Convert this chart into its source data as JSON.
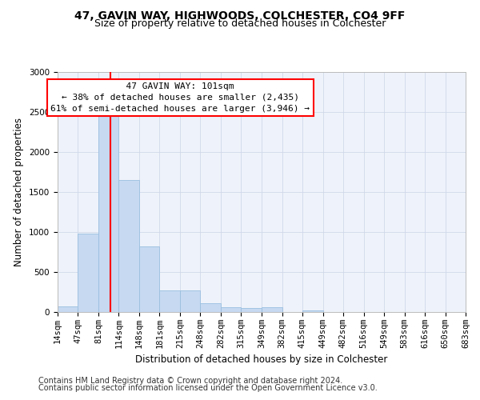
{
  "title1": "47, GAVIN WAY, HIGHWOODS, COLCHESTER, CO4 9FF",
  "title2": "Size of property relative to detached houses in Colchester",
  "xlabel": "Distribution of detached houses by size in Colchester",
  "ylabel": "Number of detached properties",
  "footnote1": "Contains HM Land Registry data © Crown copyright and database right 2024.",
  "footnote2": "Contains public sector information licensed under the Open Government Licence v3.0.",
  "annotation_line1": "  47 GAVIN WAY: 101sqm  ",
  "annotation_line2": "← 38% of detached houses are smaller (2,435)",
  "annotation_line3": "61% of semi-detached houses are larger (3,946) →",
  "bar_edges": [
    14,
    47,
    81,
    114,
    148,
    181,
    215,
    248,
    282,
    315,
    349,
    382,
    415,
    449,
    482,
    516,
    549,
    583,
    616,
    650,
    683
  ],
  "bar_heights": [
    75,
    985,
    2450,
    1650,
    820,
    270,
    270,
    115,
    60,
    50,
    60,
    0,
    25,
    0,
    0,
    0,
    0,
    0,
    0,
    0
  ],
  "bar_color": "#c6d9f1",
  "bar_edge_color": "#9abfe0",
  "red_line_x": 101,
  "ylim": [
    0,
    3000
  ],
  "yticks": [
    0,
    500,
    1000,
    1500,
    2000,
    2500,
    3000
  ],
  "grid_color": "#d0d9ea",
  "bg_color": "#eef2fa",
  "title1_fontsize": 10,
  "title2_fontsize": 9,
  "axis_label_fontsize": 8.5,
  "tick_fontsize": 7.5,
  "annotation_fontsize": 8,
  "footnote_fontsize": 7
}
